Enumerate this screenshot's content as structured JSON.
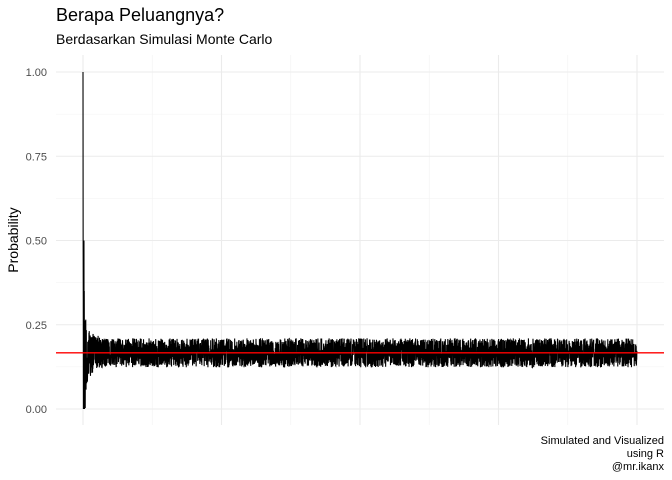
{
  "chart_data": {
    "type": "line",
    "title": "Berapa Peluangnya?",
    "subtitle": "Berdasarkan Simulasi Monte Carlo",
    "xlabel": "",
    "ylabel": "Probability",
    "caption": [
      "Simulated and Visualized",
      "using R",
      "@mr.ikanx"
    ],
    "ylim": [
      0,
      1
    ],
    "yticks": [
      "0.00",
      "0.25",
      "0.50",
      "0.75",
      "1.00"
    ],
    "xlim": [
      0,
      4000
    ],
    "x_tick_labels_shown": false,
    "grid": true,
    "series": [
      {
        "color": "#000000",
        "n": 4000,
        "description_points": [
          {
            "x": 1,
            "y": 1.0
          },
          {
            "x": 2,
            "y": 0.5
          },
          {
            "x": 3,
            "y": 0.33
          },
          {
            "x": 10,
            "y": 0.0
          },
          {
            "x": 40,
            "y": 0.2
          },
          {
            "x": 500,
            "y": 0.17
          },
          {
            "x": 4000,
            "y": 0.16
          }
        ]
      }
    ],
    "reference_line": {
      "y": 0.1667,
      "color": "#ff0000"
    }
  }
}
